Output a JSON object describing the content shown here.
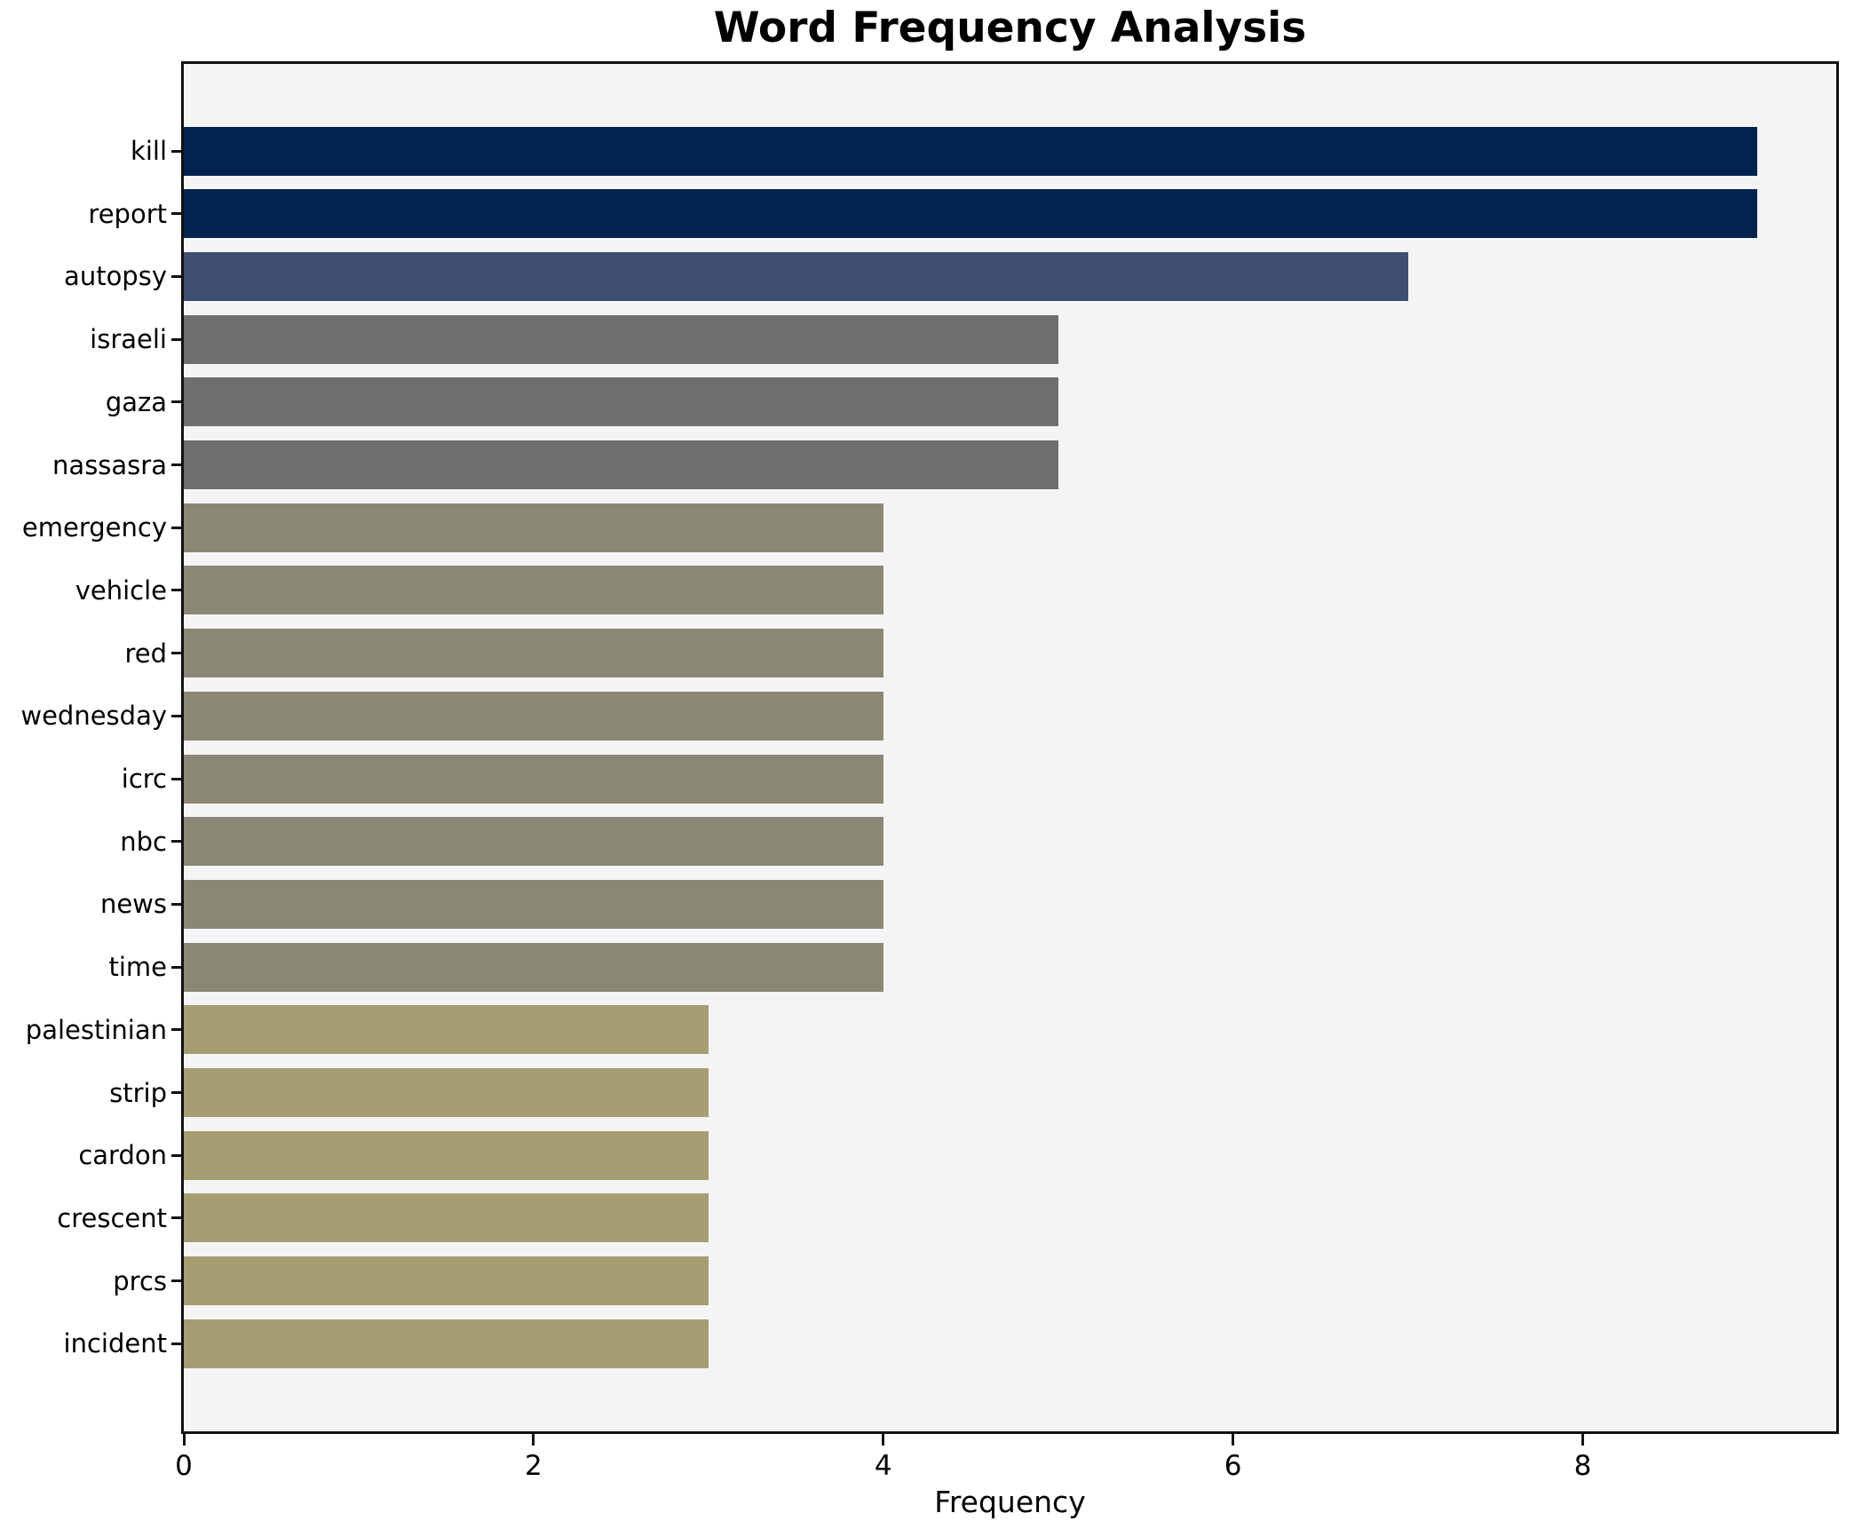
{
  "chart_data": {
    "type": "bar",
    "orientation": "horizontal",
    "title": "Word Frequency Analysis",
    "xlabel": "Frequency",
    "ylabel": "",
    "categories": [
      "kill",
      "report",
      "autopsy",
      "israeli",
      "gaza",
      "nassasra",
      "emergency",
      "vehicle",
      "red",
      "wednesday",
      "icrc",
      "nbc",
      "news",
      "time",
      "palestinian",
      "strip",
      "cardon",
      "crescent",
      "prcs",
      "incident"
    ],
    "values": [
      9,
      9,
      7,
      5,
      5,
      5,
      4,
      4,
      4,
      4,
      4,
      4,
      4,
      4,
      3,
      3,
      3,
      3,
      3,
      3
    ],
    "bar_colors": [
      "#02234e",
      "#02234e",
      "#3f4e71",
      "#6f6f71",
      "#6f6f71",
      "#6f6f71",
      "#8a8776",
      "#8a8776",
      "#8a8776",
      "#8a8776",
      "#8a8776",
      "#8a8776",
      "#8a8776",
      "#8a8776",
      "#a59e73",
      "#a59e73",
      "#a59e73",
      "#a59e73",
      "#a59e73",
      "#a59e73"
    ],
    "x_ticks": [
      0,
      2,
      4,
      6,
      8
    ],
    "xlim": [
      0,
      9.45
    ],
    "grid": false,
    "legend": null,
    "plot_background": "#f5f4f5",
    "spine_color": "#111111"
  }
}
